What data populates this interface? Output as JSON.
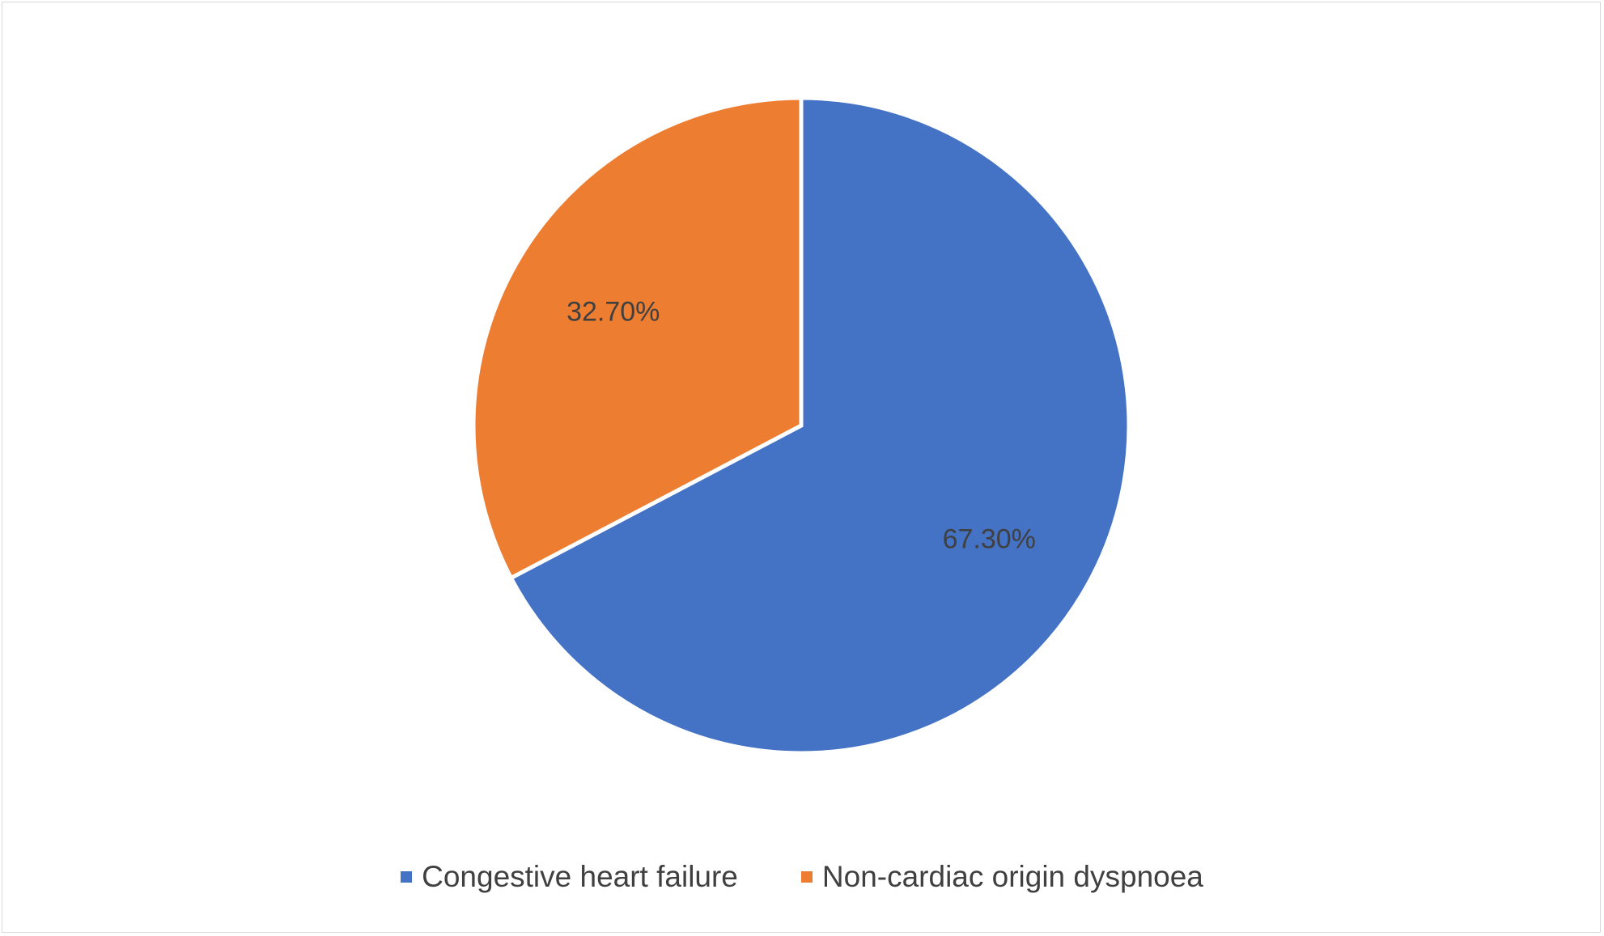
{
  "chart_data": {
    "type": "pie",
    "title": "",
    "categories": [
      "Congestive heart failure",
      "Non-cardiac origin dyspnoea"
    ],
    "values": [
      67.3,
      32.7
    ],
    "data_labels": [
      "67.30%",
      "32.70%"
    ],
    "colors": [
      "#4472C4",
      "#ED7D31"
    ],
    "start_angle_deg": 0,
    "direction": "clockwise",
    "legend_position": "bottom"
  }
}
